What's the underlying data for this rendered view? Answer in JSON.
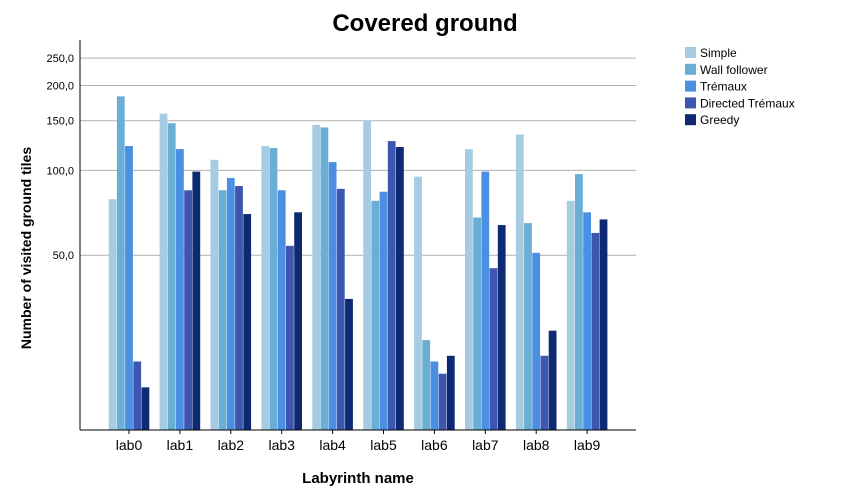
{
  "chart_data": {
    "type": "bar",
    "title": "Covered ground",
    "xlabel": "Labyrinth name",
    "ylabel": "Number of visited ground tiles",
    "yscale": "log",
    "ylim": [
      12,
      290
    ],
    "yticks": [
      50,
      100,
      150,
      200,
      250
    ],
    "ytick_labels": [
      "50,0",
      "100,0",
      "150,0",
      "200,0",
      "250,0"
    ],
    "grid": true,
    "legend_position": "top-right",
    "categories": [
      "lab0",
      "lab1",
      "lab2",
      "lab3",
      "lab4",
      "lab5",
      "lab6",
      "lab7",
      "lab8",
      "lab9"
    ],
    "series": [
      {
        "name": "Simple",
        "color": "#a6cce4",
        "values": [
          79,
          159,
          109,
          122,
          145,
          150,
          95,
          119,
          134,
          78
        ]
      },
      {
        "name": "Wall follower",
        "color": "#6aaed6",
        "values": [
          183,
          147,
          85,
          120,
          142,
          78,
          25,
          68,
          65,
          97
        ]
      },
      {
        "name": "Trémaux",
        "color": "#4a8fe2",
        "values": [
          122,
          119,
          94,
          85,
          107,
          84,
          21,
          99,
          51,
          71
        ]
      },
      {
        "name": "Directed Trémaux",
        "color": "#3d57b1",
        "values": [
          21,
          85,
          88,
          54,
          86,
          127,
          19,
          45,
          22,
          60
        ]
      },
      {
        "name": "Greedy",
        "color": "#0e2a72",
        "values": [
          17,
          99,
          70,
          71,
          35,
          121,
          22,
          64,
          27,
          67
        ]
      }
    ]
  }
}
